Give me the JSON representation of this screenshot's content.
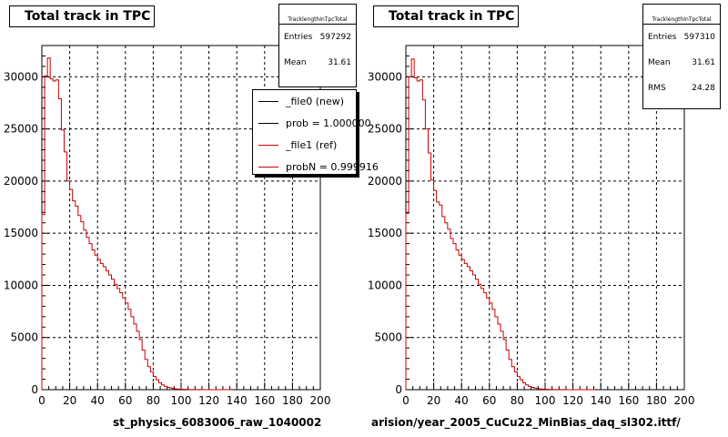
{
  "chart_data": [
    {
      "type": "step-histogram",
      "title": "Total track in TPC",
      "xlabel": "st_physics_6083006_raw_1040002",
      "xlim": [
        0,
        200
      ],
      "ylim": [
        0,
        33000
      ],
      "xticks": [
        0,
        20,
        40,
        60,
        80,
        100,
        120,
        140,
        160,
        180,
        200
      ],
      "yticks": [
        0,
        5000,
        10000,
        15000,
        20000,
        25000,
        30000
      ],
      "grid": true,
      "stats": {
        "name": "TracklengthInTpcTotal",
        "entries_label": "Entries",
        "entries": "597292",
        "mean_label": "Mean",
        "mean": "31.61"
      },
      "legend": {
        "placement": "top-right",
        "entries": [
          {
            "label": "_file0 (new)",
            "color": "#000000"
          },
          {
            "label": "prob = 1.000000",
            "color": "#000000"
          },
          {
            "label": "_file1 (ref)",
            "color": "#cc0000"
          },
          {
            "label": "probN = 0.999916",
            "color": "#cc0000"
          }
        ]
      },
      "bin_width": 2,
      "series": [
        {
          "color": "#cc0000",
          "x": [
            0,
            2,
            4,
            6,
            8,
            10,
            12,
            14,
            16,
            18,
            20,
            22,
            24,
            26,
            28,
            30,
            32,
            34,
            36,
            38,
            40,
            42,
            44,
            46,
            48,
            50,
            52,
            54,
            56,
            58,
            60,
            62,
            64,
            66,
            68,
            70,
            72,
            74,
            76,
            78,
            80,
            82,
            84,
            86,
            88,
            90,
            92,
            94,
            96,
            98,
            100,
            102,
            104,
            106,
            108,
            110,
            112,
            114,
            116,
            118,
            120,
            122,
            124,
            126,
            128,
            130,
            132,
            134
          ],
          "values": [
            16800,
            30100,
            31800,
            29800,
            29600,
            29700,
            27900,
            24900,
            22800,
            20000,
            19200,
            18100,
            17600,
            16700,
            16100,
            15300,
            14600,
            14000,
            13400,
            12900,
            12500,
            12100,
            11800,
            11400,
            11000,
            10600,
            10100,
            9700,
            9300,
            8800,
            8300,
            7700,
            7000,
            6300,
            5600,
            4800,
            3800,
            2900,
            2200,
            1700,
            1250,
            950,
            650,
            460,
            320,
            220,
            150,
            100,
            70,
            50,
            40,
            30,
            20,
            15,
            10,
            8,
            6,
            5,
            4,
            3,
            2,
            2,
            1,
            1,
            1,
            1,
            0,
            0
          ]
        }
      ]
    },
    {
      "type": "step-histogram",
      "title": "Total track in TPC",
      "xlabel": "arision/year_2005_CuCu22_MinBias_daq_sl302.ittf/",
      "xlim": [
        0,
        200
      ],
      "ylim": [
        0,
        33000
      ],
      "xticks": [
        0,
        20,
        40,
        60,
        80,
        100,
        120,
        140,
        160,
        180,
        200
      ],
      "yticks": [
        0,
        5000,
        10000,
        15000,
        20000,
        25000,
        30000
      ],
      "grid": true,
      "stats": {
        "name": "TracklengthInTpcTotal",
        "entries_label": "Entries",
        "entries": "597310",
        "mean_label": "Mean",
        "mean": "31.61",
        "rms_label": "RMS",
        "rms": "24.28"
      },
      "bin_width": 2,
      "series": [
        {
          "color": "#cc0000",
          "x": [
            0,
            2,
            4,
            6,
            8,
            10,
            12,
            14,
            16,
            18,
            20,
            22,
            24,
            26,
            28,
            30,
            32,
            34,
            36,
            38,
            40,
            42,
            44,
            46,
            48,
            50,
            52,
            54,
            56,
            58,
            60,
            62,
            64,
            66,
            68,
            70,
            72,
            74,
            76,
            78,
            80,
            82,
            84,
            86,
            88,
            90,
            92,
            94,
            96,
            98,
            100,
            102,
            104,
            106,
            108,
            110,
            112,
            114,
            116,
            118,
            120,
            122,
            124,
            126,
            128,
            130,
            132,
            134
          ],
          "values": [
            16900,
            30000,
            31700,
            29900,
            29600,
            29700,
            27800,
            25000,
            22700,
            20100,
            19100,
            18000,
            17700,
            16600,
            16000,
            15400,
            14500,
            14000,
            13400,
            12900,
            12500,
            12100,
            11800,
            11400,
            11000,
            10600,
            10100,
            9700,
            9300,
            8800,
            8300,
            7700,
            7000,
            6300,
            5600,
            4800,
            3800,
            2900,
            2200,
            1700,
            1250,
            950,
            650,
            460,
            320,
            220,
            150,
            100,
            70,
            50,
            40,
            30,
            20,
            15,
            10,
            8,
            6,
            5,
            4,
            3,
            2,
            2,
            1,
            1,
            1,
            1,
            0,
            0
          ]
        }
      ]
    }
  ]
}
